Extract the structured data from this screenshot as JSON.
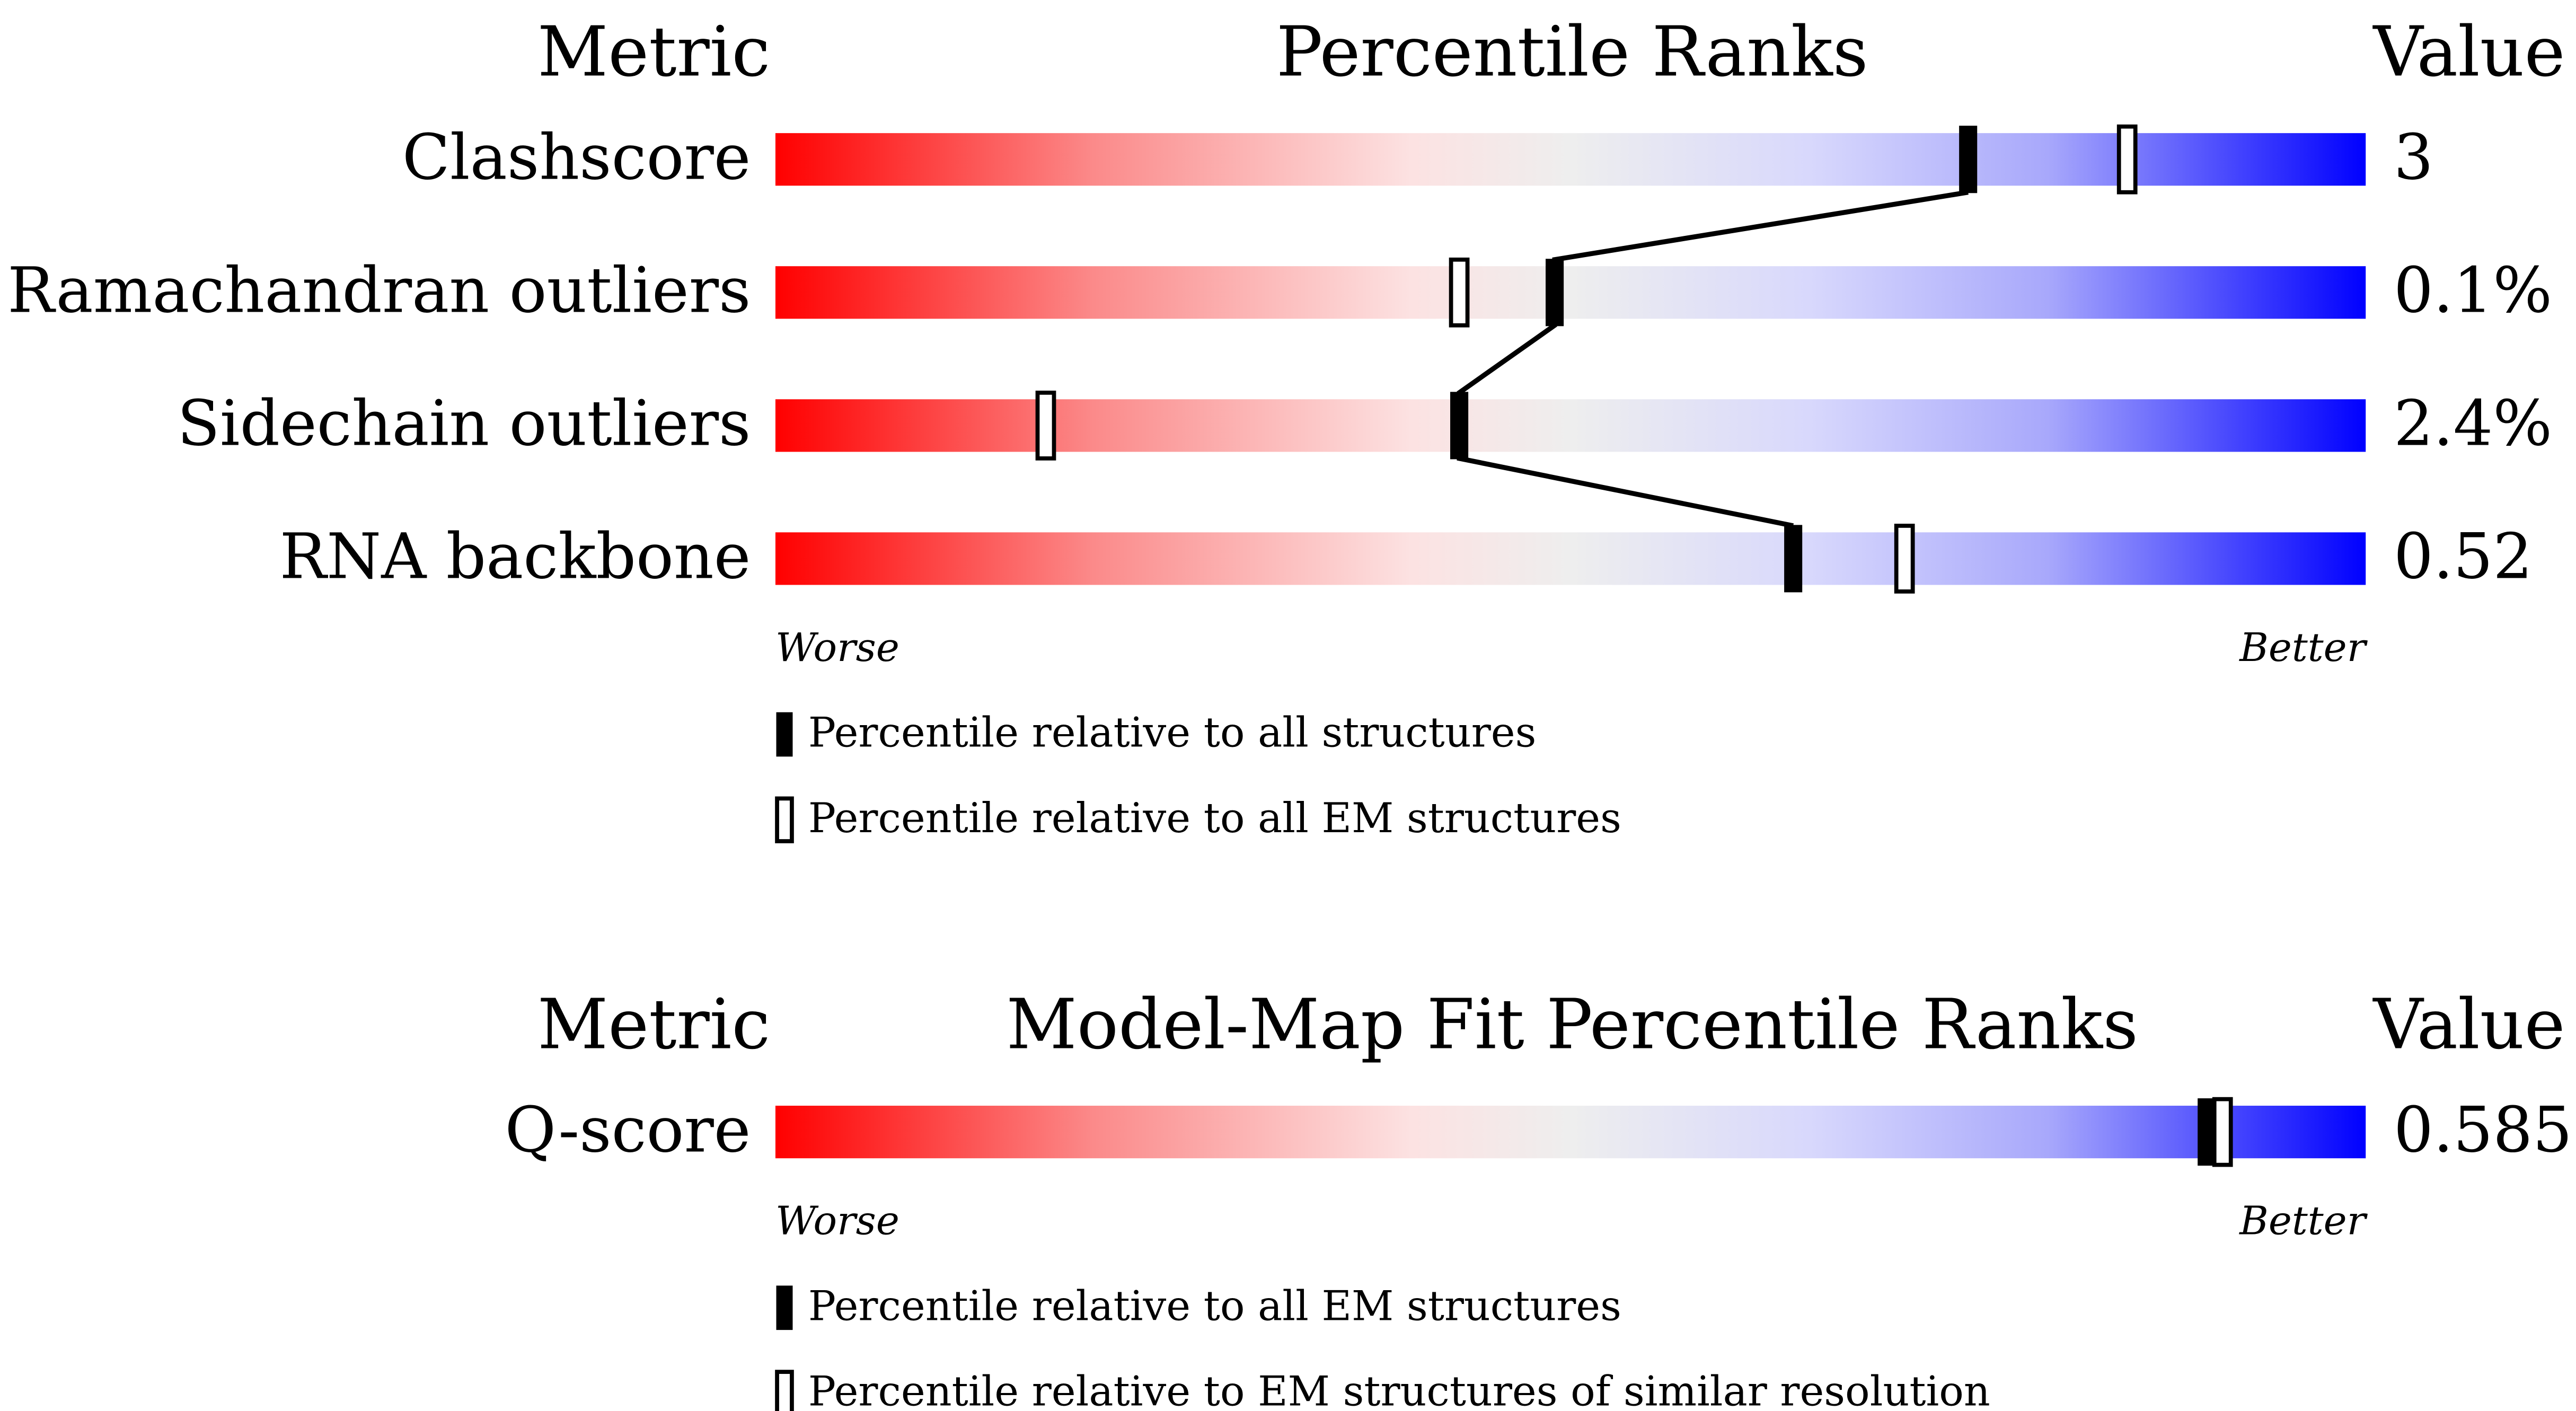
{
  "panels": [
    {
      "header": {
        "metric": "Metric",
        "title": "Percentile Ranks",
        "value": "Value"
      },
      "range": [
        0,
        100
      ],
      "rows": [
        {
          "metric": "Clashscore",
          "value": "3",
          "percentiles": [
            75,
            85
          ]
        },
        {
          "metric": "Ramachandran outliers",
          "value": "0.1%",
          "percentiles": [
            49,
            43
          ]
        },
        {
          "metric": "Sidechain outliers",
          "value": "2.4%",
          "percentiles": [
            43,
            17
          ]
        },
        {
          "metric": "RNA backbone",
          "value": "0.52",
          "percentiles": [
            64,
            71
          ]
        }
      ],
      "scale": {
        "worse": "Worse",
        "better": "Better"
      },
      "legend": [
        "Percentile relative to all structures",
        "Percentile relative to all EM structures"
      ]
    },
    {
      "header": {
        "metric": "Metric",
        "title": "Model-Map Fit Percentile Ranks",
        "value": "Value"
      },
      "range": [
        0,
        100
      ],
      "rows": [
        {
          "metric": "Q-score",
          "value": "0.585",
          "percentiles": [
            90,
            91
          ]
        }
      ],
      "scale": {
        "worse": "Worse",
        "better": "Better"
      },
      "legend": [
        "Percentile relative to all EM structures",
        "Percentile relative to EM structures of similar resolution"
      ]
    }
  ]
}
